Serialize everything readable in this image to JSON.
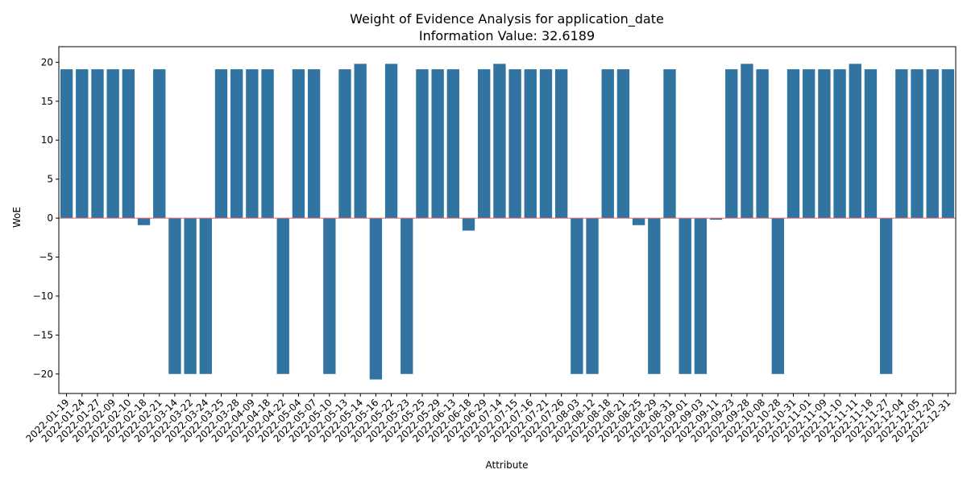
{
  "chart_data": {
    "type": "bar",
    "title": "Weight of Evidence Analysis for application_date",
    "subtitle": "Information Value: 32.6189",
    "xlabel": "Attribute",
    "ylabel": "WoE",
    "ylim": [
      -22.5,
      22
    ],
    "yticks": [
      -20,
      -15,
      -10,
      -5,
      0,
      5,
      10,
      15,
      20
    ],
    "ytick_labels": [
      "−20",
      "−15",
      "−10",
      "−5",
      "0",
      "5",
      "10",
      "15",
      "20"
    ],
    "grid": false,
    "bar_color": "#3274a1",
    "reference_line": {
      "y": 0,
      "color": "#e06666"
    },
    "categories": [
      "2022-01-19",
      "2022-01-24",
      "2022-01-27",
      "2022-02-09",
      "2022-02-10",
      "2022-02-18",
      "2022-02-21",
      "2022-03-14",
      "2022-03-22",
      "2022-03-24",
      "2022-03-25",
      "2022-03-28",
      "2022-04-09",
      "2022-04-18",
      "2022-04-22",
      "2022-05-04",
      "2022-05-07",
      "2022-05-10",
      "2022-05-13",
      "2022-05-14",
      "2022-05-16",
      "2022-05-22",
      "2022-05-23",
      "2022-05-25",
      "2022-05-29",
      "2022-06-13",
      "2022-06-18",
      "2022-06-29",
      "2022-07-14",
      "2022-07-15",
      "2022-07-16",
      "2022-07-21",
      "2022-07-26",
      "2022-08-03",
      "2022-08-12",
      "2022-08-18",
      "2022-08-21",
      "2022-08-25",
      "2022-08-29",
      "2022-08-31",
      "2022-09-01",
      "2022-09-03",
      "2022-09-11",
      "2022-09-23",
      "2022-09-28",
      "2022-10-08",
      "2022-10-28",
      "2022-10-31",
      "2022-11-01",
      "2022-11-09",
      "2022-11-10",
      "2022-11-11",
      "2022-11-18",
      "2022-11-27",
      "2022-12-04",
      "2022-12-05",
      "2022-12-20",
      "2022-12-31"
    ],
    "values": [
      19.1,
      19.1,
      19.1,
      19.1,
      19.1,
      -0.9,
      19.1,
      -20.0,
      -20.0,
      -20.0,
      19.1,
      19.1,
      19.1,
      19.1,
      -20.0,
      19.1,
      19.1,
      -20.0,
      19.1,
      19.8,
      -20.7,
      19.8,
      -20.0,
      19.1,
      19.1,
      19.1,
      -1.6,
      19.1,
      19.8,
      19.1,
      19.1,
      19.1,
      19.1,
      -20.0,
      -20.0,
      19.1,
      19.1,
      -0.9,
      -20.0,
      19.1,
      -20.0,
      -20.0,
      -0.2,
      19.1,
      19.8,
      19.1,
      -20.0,
      19.1,
      19.1,
      19.1,
      19.1,
      19.8,
      19.1,
      -20.0,
      19.1,
      19.1,
      19.1,
      19.1
    ]
  }
}
